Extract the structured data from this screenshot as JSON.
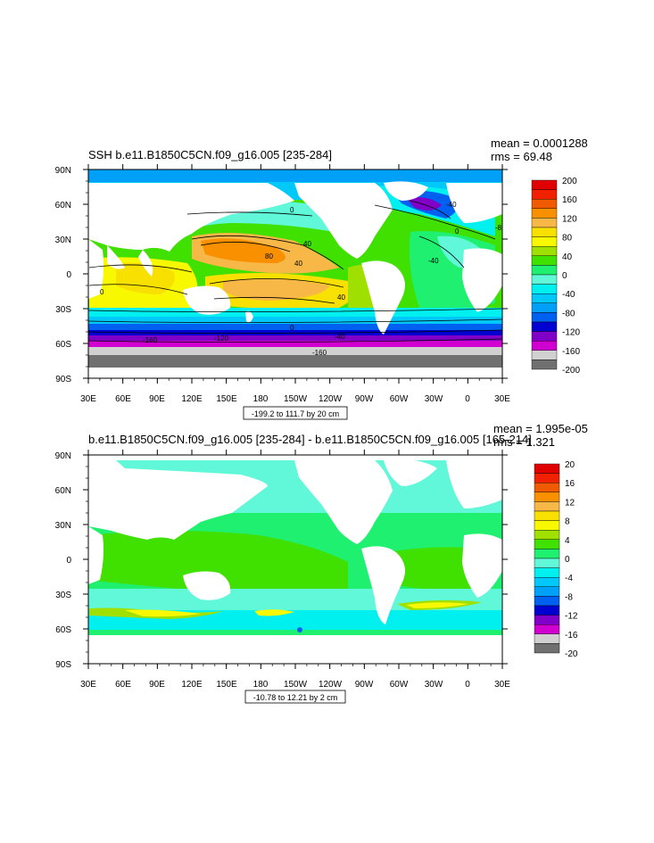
{
  "panels": [
    {
      "title": "SSH b.e11.B1850C5CN.f09_g16.005 [235-284]",
      "stats": {
        "mean": "mean = 0.0001288",
        "rms": "rms = 69.48"
      },
      "range_caption": "-199.2 to 111.7 by 20 cm",
      "lat_labels": [
        "90N",
        "60N",
        "30N",
        "0",
        "30S",
        "60S",
        "90S"
      ],
      "lon_labels": [
        "30E",
        "60E",
        "90E",
        "120E",
        "150E",
        "180",
        "150W",
        "120W",
        "90W",
        "60W",
        "30W",
        "0",
        "30E"
      ],
      "colorbar": {
        "levels": [
          "200",
          "160",
          "120",
          "80",
          "40",
          "0",
          "-40",
          "-80",
          "-120",
          "-160",
          "-200"
        ],
        "colors": [
          "#e00000",
          "#f02000",
          "#f05a00",
          "#f89000",
          "#f8b848",
          "#f8e000",
          "#f8f800",
          "#a0e000",
          "#40e000",
          "#20f070",
          "#60f8d8",
          "#00f0f0",
          "#00c8f8",
          "#00a0f8",
          "#0060f0",
          "#0000d0",
          "#8000c8",
          "#d000d0",
          "#d0d0d0",
          "#707070"
        ]
      },
      "contour_labels": [
        "0",
        "40",
        "80",
        "40",
        "40",
        "0",
        "0",
        "-40",
        "-160",
        "-120",
        "-160",
        "-40",
        "0",
        "-40",
        "-80"
      ]
    },
    {
      "title": "b.e11.B1850C5CN.f09_g16.005 [235-284] - b.e11.B1850C5CN.f09_g16.005 [165-214]",
      "stats": {
        "mean": "mean = 1.995e-05",
        "rms": "rms = 1.321"
      },
      "range_caption": "-10.78 to 12.21 by 2 cm",
      "lat_labels": [
        "90N",
        "60N",
        "30N",
        "0",
        "30S",
        "60S",
        "90S"
      ],
      "lon_labels": [
        "30E",
        "60E",
        "90E",
        "120E",
        "150E",
        "180",
        "150W",
        "120W",
        "90W",
        "60W",
        "30W",
        "0",
        "30E"
      ],
      "colorbar": {
        "levels": [
          "20",
          "16",
          "12",
          "8",
          "4",
          "0",
          "-4",
          "-8",
          "-12",
          "-16",
          "-20"
        ],
        "colors": [
          "#e00000",
          "#f02000",
          "#f05a00",
          "#f89000",
          "#f8b848",
          "#f8e000",
          "#f8f800",
          "#a0e000",
          "#40e000",
          "#20f070",
          "#60f8d8",
          "#00f0f0",
          "#00c8f8",
          "#00a0f8",
          "#0060f0",
          "#0000d0",
          "#8000c8",
          "#d000d0",
          "#d0d0d0",
          "#707070"
        ]
      }
    }
  ],
  "colors": {
    "land": "#ffffff",
    "frame": "#000000"
  }
}
